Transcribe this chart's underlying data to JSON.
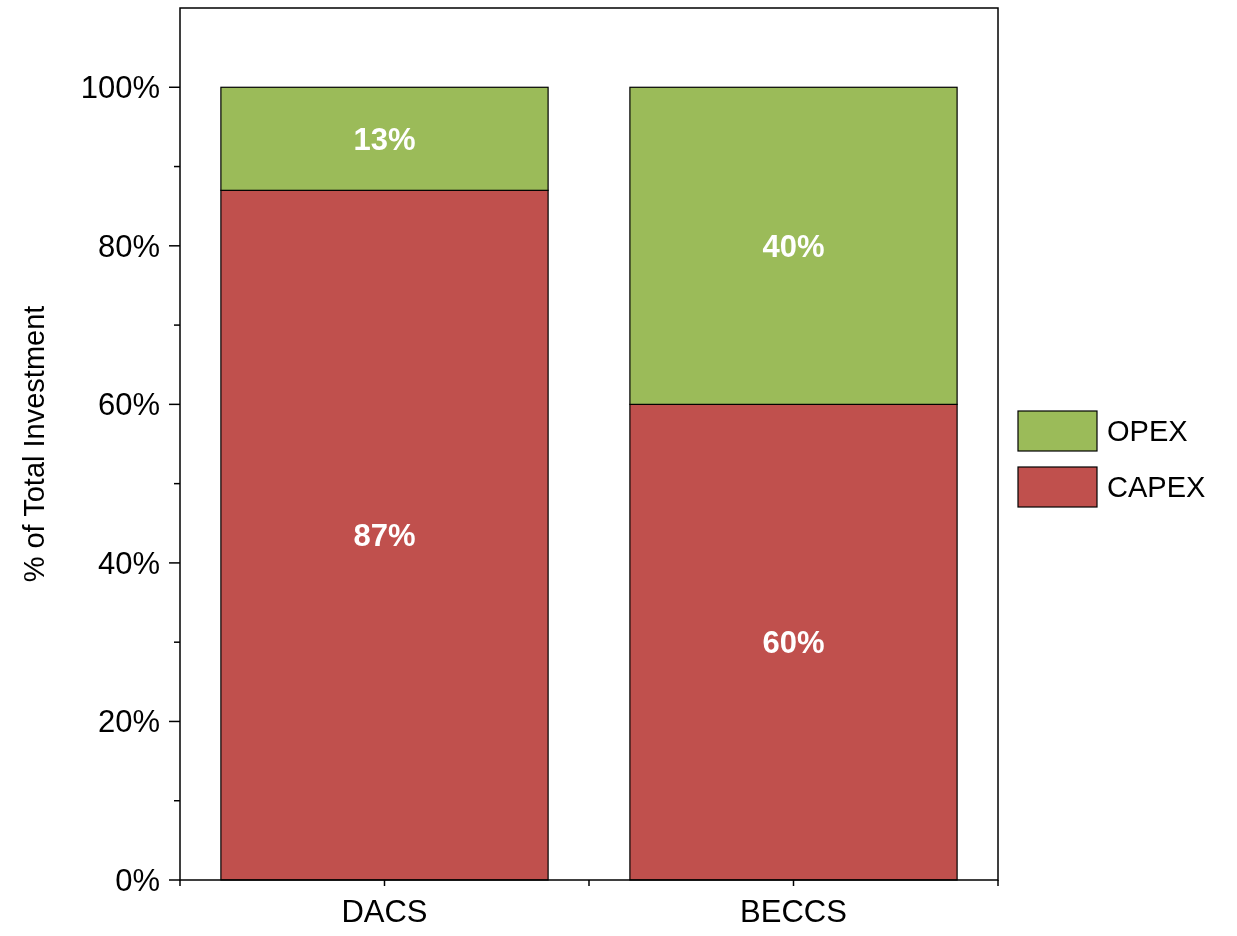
{
  "chart_data": {
    "type": "bar",
    "stacked": true,
    "ylabel": "% of Total Investment",
    "categories": [
      "DACS",
      "BECCS"
    ],
    "series": [
      {
        "name": "CAPEX",
        "color": "#c0504d",
        "values": [
          87,
          60
        ],
        "value_labels": [
          "87%",
          "60%"
        ]
      },
      {
        "name": "OPEX",
        "color": "#9bbb59",
        "values": [
          13,
          40
        ],
        "value_labels": [
          "13%",
          "40%"
        ]
      }
    ],
    "ylim": [
      0,
      110
    ],
    "yticks": [
      {
        "value": 0,
        "label": "0%"
      },
      {
        "value": 10,
        "label": null
      },
      {
        "value": 20,
        "label": "20%"
      },
      {
        "value": 30,
        "label": null
      },
      {
        "value": 40,
        "label": "40%"
      },
      {
        "value": 50,
        "label": null
      },
      {
        "value": 60,
        "label": "60%"
      },
      {
        "value": 70,
        "label": null
      },
      {
        "value": 80,
        "label": "80%"
      },
      {
        "value": 90,
        "label": null
      },
      {
        "value": 100,
        "label": "100%"
      }
    ],
    "grid": false,
    "legend": "right"
  }
}
